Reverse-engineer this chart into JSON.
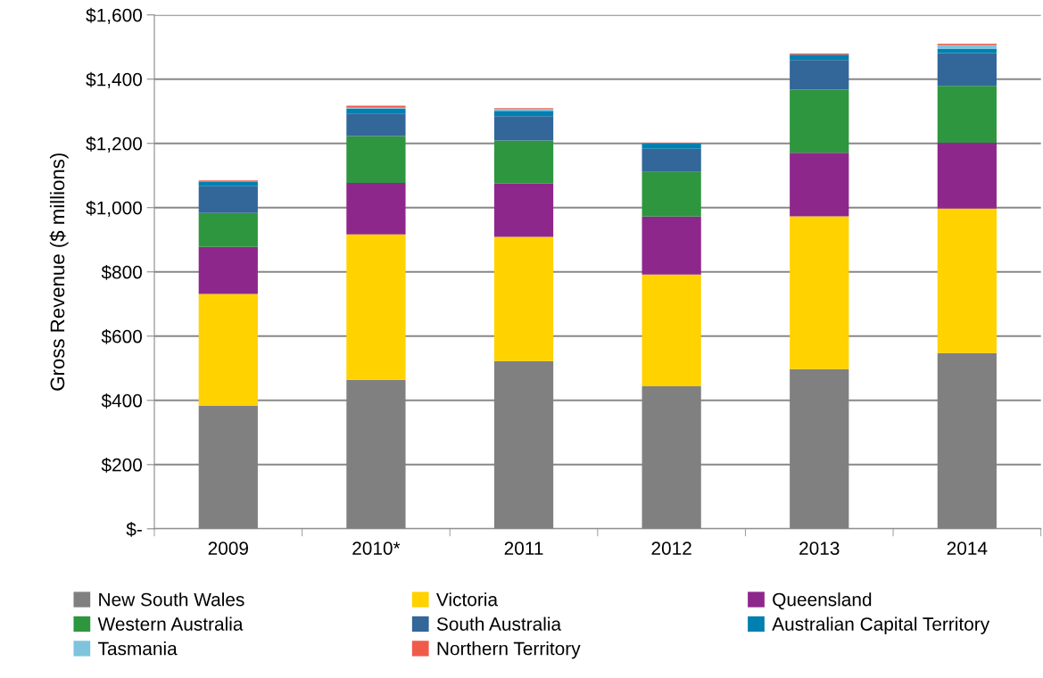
{
  "chart_data": {
    "type": "bar",
    "stacked": true,
    "ylabel": "Gross Revenue ($ millions)",
    "categories": [
      "2009",
      "2010*",
      "2011",
      "2012",
      "2013",
      "2014"
    ],
    "series": [
      {
        "name": "New South Wales",
        "color": "#808080",
        "values": [
          383,
          464,
          522,
          444,
          497,
          547
        ]
      },
      {
        "name": "Victoria",
        "color": "#ffd200",
        "values": [
          348,
          453,
          387,
          348,
          476,
          450
        ]
      },
      {
        "name": "Queensland",
        "color": "#8e278c",
        "values": [
          147,
          160,
          166,
          180,
          198,
          205
        ]
      },
      {
        "name": "Western Australia",
        "color": "#2e963f",
        "values": [
          105,
          146,
          134,
          139,
          196,
          177
        ]
      },
      {
        "name": "South Australia",
        "color": "#336699",
        "values": [
          84,
          70,
          76,
          72,
          93,
          102
        ]
      },
      {
        "name": "Australian Capital Territory",
        "color": "#0080b0",
        "values": [
          14,
          15,
          16,
          17,
          16,
          13
        ]
      },
      {
        "name": "Tasmania",
        "color": "#7fc4dd",
        "values": [
          null,
          3,
          6,
          null,
          null,
          12
        ]
      },
      {
        "name": "Northern Territory",
        "color": "#f05a4a",
        "values": [
          4,
          6,
          3,
          2,
          4,
          4
        ]
      }
    ],
    "ylim": [
      0,
      1600
    ],
    "yticks": [
      {
        "value": 0,
        "label": "$-"
      },
      {
        "value": 200,
        "label": "$200"
      },
      {
        "value": 400,
        "label": "$400"
      },
      {
        "value": 600,
        "label": "$600"
      },
      {
        "value": 800,
        "label": "$800"
      },
      {
        "value": 1000,
        "label": "$1,000"
      },
      {
        "value": 1200,
        "label": "$1,200"
      },
      {
        "value": 1400,
        "label": "$1,400"
      },
      {
        "value": 1600,
        "label": "$1,600"
      }
    ],
    "grid": "y",
    "legend": "bottom"
  }
}
